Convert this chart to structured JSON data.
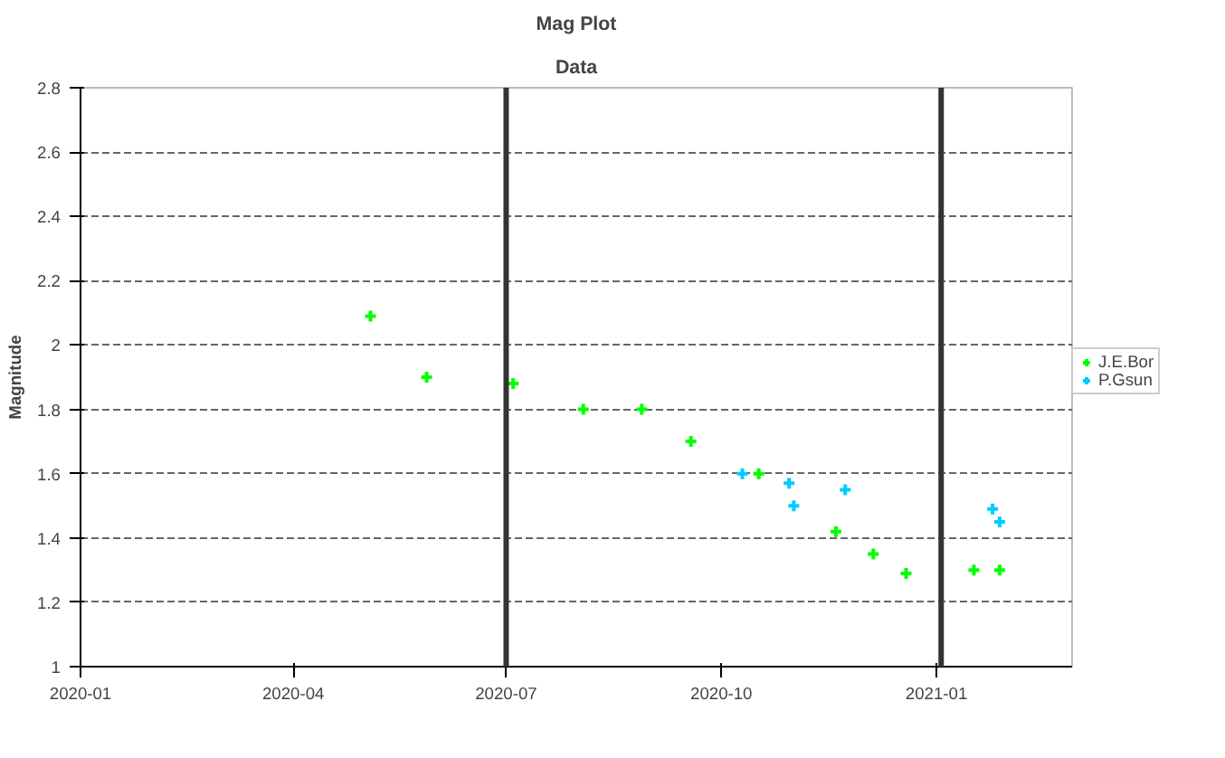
{
  "chart_data": {
    "type": "scatter",
    "title": "Mag Plot",
    "subtitle": "Data",
    "ylabel": "Magnitude",
    "xlim": [
      "2020-01-01",
      "2021-02-28"
    ],
    "xticks": [
      "2020-01",
      "2020-04",
      "2020-07",
      "2020-10",
      "2021-01"
    ],
    "ylim": [
      1,
      2.8
    ],
    "yticks": [
      1,
      1.2,
      1.4,
      1.6,
      1.8,
      2,
      2.2,
      2.4,
      2.6,
      2.8
    ],
    "grid": "y",
    "legend": "right",
    "marker": "cross",
    "ref_lines": [
      {
        "axis": "x",
        "value": "2020-07-01",
        "color": "#333333"
      },
      {
        "axis": "x",
        "value": "2021-01-03",
        "color": "#333333"
      }
    ],
    "series": [
      {
        "name": "J.E.Bor",
        "color": "#00ff00",
        "x": [
          "2020-05-04",
          "2020-05-28",
          "2020-07-04",
          "2020-08-03",
          "2020-08-28",
          "2020-09-18",
          "2020-10-17",
          "2020-11-19",
          "2020-12-05",
          "2020-12-19",
          "2021-01-17",
          "2021-01-28"
        ],
        "values": [
          2.09,
          1.9,
          1.88,
          1.8,
          1.8,
          1.7,
          1.6,
          1.42,
          1.35,
          1.29,
          1.3,
          1.3
        ]
      },
      {
        "name": "P.Gsun",
        "color": "#00ccff",
        "x": [
          "2020-10-10",
          "2020-10-30",
          "2020-11-01",
          "2020-11-23",
          "2021-01-25",
          "2021-01-28"
        ],
        "values": [
          1.6,
          1.57,
          1.5,
          1.55,
          1.49,
          1.45
        ]
      }
    ]
  }
}
